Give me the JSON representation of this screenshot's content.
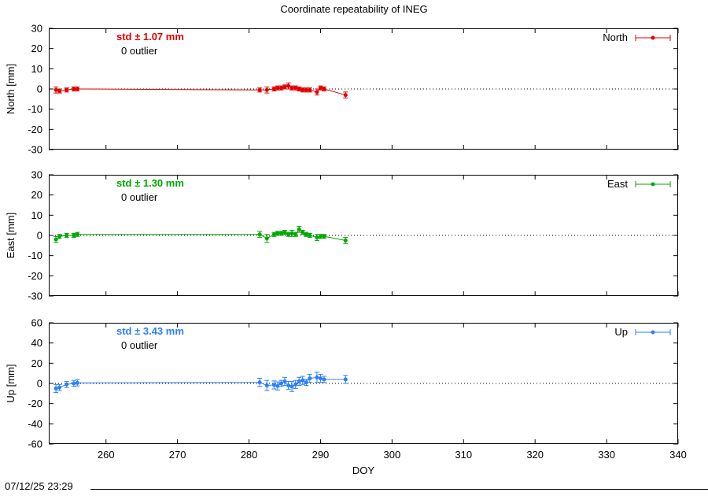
{
  "header": {
    "title": "Coordinate repeatability of INEG"
  },
  "footer": {
    "timestamp": "07/12/25 23:29"
  },
  "chart_data": {
    "type": "line",
    "title": "Coordinate repeatability of INEG",
    "xlabel": "DOY",
    "xlim": [
      252,
      340
    ],
    "x_ticks": [
      260,
      270,
      280,
      290,
      300,
      310,
      320,
      330,
      340
    ],
    "x": [
      253.0,
      253.5,
      254.5,
      255.5,
      256.0,
      281.5,
      282.5,
      283.5,
      284.0,
      284.5,
      285.0,
      285.5,
      286.0,
      286.5,
      287.0,
      287.5,
      288.0,
      288.5,
      289.5,
      290.0,
      290.5,
      293.5
    ],
    "panels": [
      {
        "name": "North",
        "ylabel": "North [mm]",
        "ylim": [
          -30,
          30
        ],
        "y_ticks": [
          -30,
          -20,
          -10,
          0,
          10,
          20,
          30
        ],
        "color": "#e00000",
        "std_label": "std ± 1.07 mm",
        "outlier_label": "0 outlier",
        "legend_label": "North",
        "y": [
          -0.5,
          -1.0,
          -0.5,
          0.0,
          0.0,
          -0.5,
          -0.5,
          0.0,
          0.5,
          0.5,
          1.0,
          1.5,
          0.5,
          0.5,
          0.0,
          -0.5,
          -0.5,
          -0.5,
          -1.5,
          0.5,
          0.0,
          -3.0
        ],
        "err": [
          1.5,
          1.0,
          1.0,
          1.0,
          1.0,
          1.0,
          1.5,
          1.0,
          1.0,
          1.0,
          1.0,
          1.5,
          1.0,
          1.0,
          1.0,
          1.0,
          1.0,
          1.0,
          1.5,
          1.0,
          1.0,
          1.5
        ]
      },
      {
        "name": "East",
        "ylabel": "East [mm]",
        "ylim": [
          -30,
          30
        ],
        "y_ticks": [
          -30,
          -20,
          -10,
          0,
          10,
          20,
          30
        ],
        "color": "#00a800",
        "std_label": "std ± 1.30 mm",
        "outlier_label": "0 outlier",
        "legend_label": "East",
        "y": [
          -2.0,
          -0.5,
          0.0,
          0.0,
          0.5,
          0.5,
          -1.5,
          0.5,
          1.0,
          1.0,
          1.5,
          0.5,
          1.0,
          0.5,
          3.0,
          1.5,
          0.5,
          0.0,
          -1.0,
          -0.5,
          -0.5,
          -2.5
        ],
        "err": [
          1.5,
          1.0,
          1.0,
          1.0,
          1.0,
          1.5,
          2.0,
          1.0,
          1.0,
          1.0,
          1.0,
          1.0,
          1.5,
          1.0,
          1.5,
          1.0,
          1.0,
          1.0,
          1.5,
          1.0,
          1.0,
          1.5
        ]
      },
      {
        "name": "Up",
        "ylabel": "Up [mm]",
        "ylim": [
          -60,
          60
        ],
        "y_ticks": [
          -60,
          -40,
          -20,
          0,
          20,
          40,
          60
        ],
        "color": "#2a7fff",
        "std_label": "std ± 3.43 mm",
        "outlier_label": "0 outlier",
        "legend_label": "Up",
        "y": [
          -5.0,
          -4.0,
          -1.0,
          0.0,
          0.5,
          1.0,
          -2.0,
          -1.5,
          -2.5,
          0.0,
          2.0,
          -2.0,
          -3.0,
          -1.0,
          2.0,
          3.0,
          1.0,
          5.0,
          6.0,
          5.0,
          4.0,
          4.0
        ],
        "err": [
          4.0,
          3.0,
          3.0,
          3.0,
          3.0,
          4.0,
          5.0,
          4.0,
          4.0,
          3.0,
          4.0,
          4.0,
          5.0,
          4.0,
          4.0,
          4.0,
          3.0,
          4.0,
          5.0,
          4.0,
          3.0,
          4.0
        ]
      }
    ]
  }
}
